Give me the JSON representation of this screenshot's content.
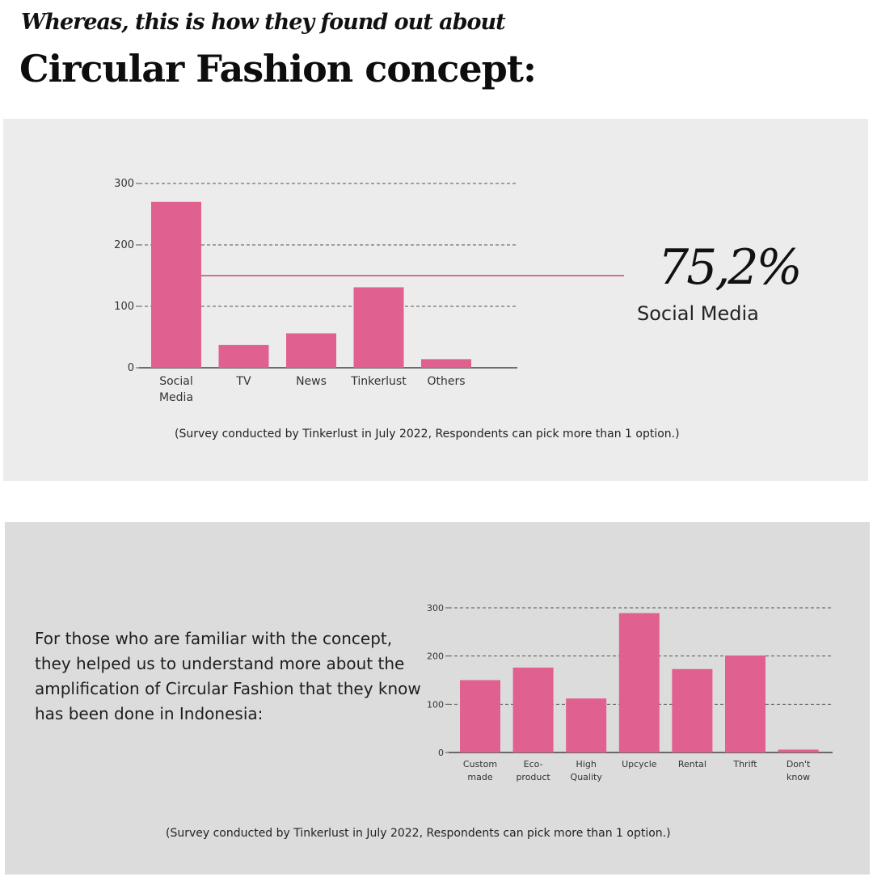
{
  "header": {
    "subtitle": "Whereas, this is how they found out about",
    "title": "Circular Fashion concept:"
  },
  "highlight": {
    "value": "75,2%",
    "label": "Social Media"
  },
  "note_top": "(Survey conducted by Tinkerlust in July 2022, Respondents can pick more than 1 option.)",
  "paragraph": "For those who are familiar with the concept, they helped us to understand more about the amplification of Circular Fashion that they know has been done in Indonesia:",
  "note_bottom": "(Survey conducted by Tinkerlust in July 2022, Respondents can pick more than 1 option.)",
  "colors": {
    "bar": "#e06090",
    "accent_line": "#c8476f",
    "grid": "#555555"
  },
  "chart_data": [
    {
      "type": "bar",
      "categories": [
        [
          "Social",
          "Media"
        ],
        [
          "TV"
        ],
        [
          "News"
        ],
        [
          "Tinkerlust"
        ],
        [
          "Others"
        ]
      ],
      "values": [
        270,
        37,
        56,
        131,
        14
      ],
      "ylim": [
        0,
        300
      ],
      "yticks": [
        0,
        100,
        200,
        300
      ],
      "reference_line": 150,
      "grid": true
    },
    {
      "type": "bar",
      "categories": [
        [
          "Custom",
          "made"
        ],
        [
          "Eco-",
          "product"
        ],
        [
          "High",
          "Quality"
        ],
        [
          "Upcycle"
        ],
        [
          "Rental"
        ],
        [
          "Thrift"
        ],
        [
          "Don't",
          "know"
        ]
      ],
      "values": [
        150,
        176,
        112,
        289,
        173,
        201,
        6
      ],
      "ylim": [
        0,
        300
      ],
      "yticks": [
        0,
        100,
        200,
        300
      ],
      "grid": true
    }
  ]
}
